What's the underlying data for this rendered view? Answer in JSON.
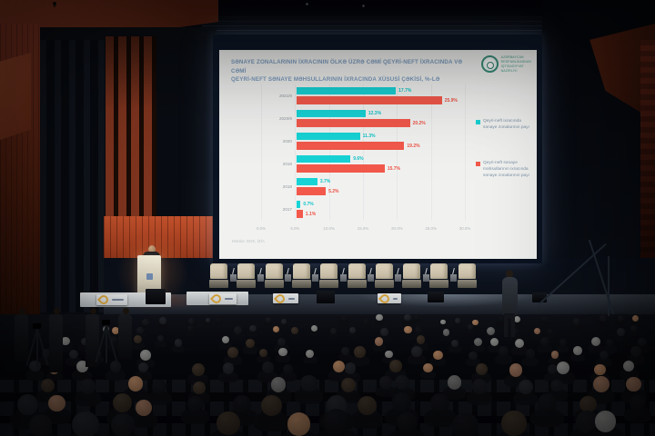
{
  "slide": {
    "title_line1": "SƏNAYE ZONALARININ İXRACININ ÖLKƏ ÜZRƏ CƏMİ QEYRİ-NEFT İXRACINDA VƏ CƏMİ",
    "title_line2": "QEYRİ-NEFT SƏNAYE MƏHSULLARININ İXRACINDA XÜSUSİ ÇƏKİSİ, %-LƏ",
    "ministry_logo_lines": [
      "AZƏRBAYCAN",
      "RESPUBLİKASININ",
      "İQTİSADİYYAT",
      "NAZİRLİYİ"
    ],
    "source_note": "Mənbə: DGK, İZİA"
  },
  "chart_data": {
    "type": "bar",
    "orientation": "horizontal",
    "title": "Sənaye zonalarının ixracının ölkə üzrə cəmi qeyri-neft ixracında və cəmi qeyri-neft sənaye məhsullarının ixracında xüsusi çəkisi, %-lə",
    "categories": [
      "2021/9",
      "2020/9",
      "2020",
      "2019",
      "2018",
      "2017"
    ],
    "series": [
      {
        "name": "Qeyri-neft ixracında sənaye zonalarının payı",
        "color": "#17d3d6",
        "label_color": "#10c4c8",
        "values": [
          17.7,
          12.3,
          11.3,
          9.6,
          3.7,
          0.7
        ]
      },
      {
        "name": "Qeyri-neft sənaye məhsullarının ixracında sənaye zonalarının payı",
        "color": "#f2594b",
        "label_color": "#ee5245",
        "values": [
          25.9,
          20.2,
          19.2,
          15.7,
          5.2,
          1.1
        ]
      }
    ],
    "x_ticks": [
      "0.0%",
      "5.0%",
      "10.0%",
      "15.0%",
      "20.0%",
      "25.0%",
      "30.0%"
    ],
    "xlim": [
      0,
      30
    ],
    "grid": true,
    "legend_position": "right",
    "value_labels": true
  },
  "scene": {
    "stage_chair_count": 10,
    "colors": {
      "bar_teal": "#17d3d6",
      "bar_red": "#f2594b",
      "title_blue": "#7d9cc0",
      "ministry_teal": "#3e9a84",
      "hall_wood": "#7c3420",
      "screen_white": "#f1f2f0"
    }
  }
}
